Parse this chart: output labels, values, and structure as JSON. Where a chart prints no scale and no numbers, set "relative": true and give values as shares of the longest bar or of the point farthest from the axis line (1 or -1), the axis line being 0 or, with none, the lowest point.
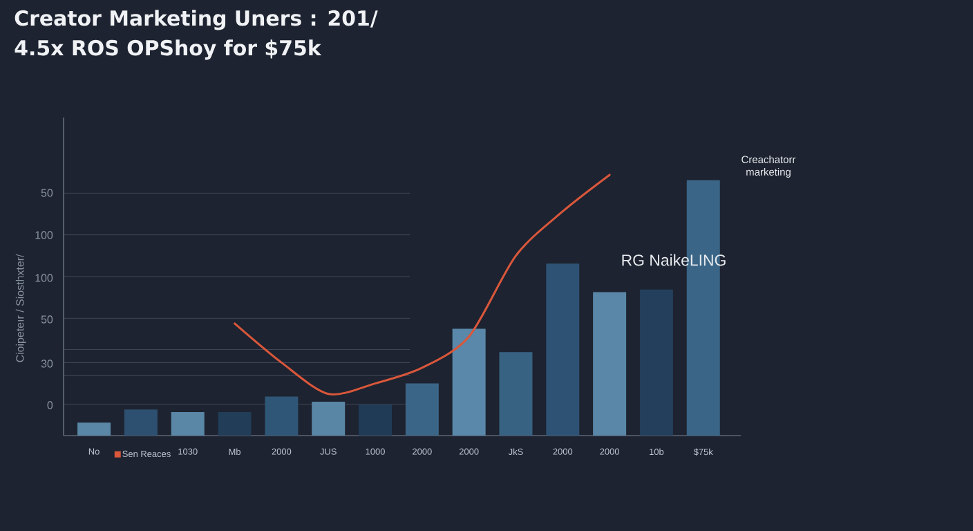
{
  "chart_data": {
    "type": "bar",
    "relative": true,
    "title": "Creator Marketing Uners : 201/",
    "subtitle": "4.5x ROS OPShoy for $75k",
    "ylabel": "Cioipeteır / Siosthxter/",
    "categories": [
      "No",
      null,
      "1030",
      "Mb",
      "2000",
      "JUS",
      "1000",
      "2000",
      "2000",
      "JkS",
      "2000",
      "2000",
      "10b",
      "$75k"
    ],
    "series": [
      {
        "values": [
          0.05,
          0.1,
          0.09,
          0.09,
          0.15,
          0.13,
          0.12,
          0.2,
          0.41,
          0.32,
          0.66,
          0.55,
          0.56,
          0.98
        ],
        "colors": [
          "#5b87a6",
          "#2e5070",
          "#5b87a6",
          "#213d58",
          "#2f5676",
          "#5a86a5",
          "#203b56",
          "#3b6586",
          "#5a88aa",
          "#386282",
          "#2e5273",
          "#5a87a7",
          "#233f5c",
          "#3a6586"
        ]
      },
      {
        "type": "line",
        "name": "Sen Reaces",
        "color": "#d9573b",
        "values": [
          null,
          null,
          null,
          0.43,
          0.28,
          0.16,
          0.2,
          0.26,
          0.38,
          0.69,
          0.86,
          1.0,
          null,
          null
        ]
      }
    ],
    "ref_lines": [
      {
        "axis": "y",
        "value": 0.12
      },
      {
        "axis": "y",
        "value": 0.23
      },
      {
        "axis": "y",
        "value": 0.28
      },
      {
        "axis": "y",
        "value": 0.33
      },
      {
        "axis": "y",
        "value": 0.45
      },
      {
        "axis": "y",
        "value": 0.61
      },
      {
        "axis": "y",
        "value": 0.77
      },
      {
        "axis": "y",
        "value": 0.93
      }
    ],
    "legend": "bottom left",
    "annotations": [
      "Creachatorr marketing",
      "RG NaikeLING",
      "0",
      "30",
      "50",
      "100",
      "100",
      "50"
    ]
  }
}
